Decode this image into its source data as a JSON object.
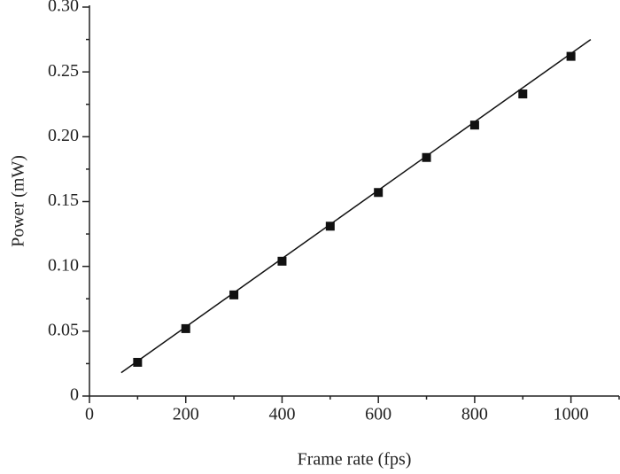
{
  "chart_data": {
    "type": "scatter",
    "x_label": "Frame rate (fps)",
    "y_label": "Power (mW)",
    "xlim": [
      0,
      1100
    ],
    "ylim": [
      0,
      0.3
    ],
    "xticks": [
      0,
      200,
      400,
      600,
      800,
      1000
    ],
    "yticks": [
      0,
      {
        "value": 0.05,
        "label": "0.05"
      },
      {
        "value": 0.1,
        "label": "0.10"
      },
      {
        "value": 0.15,
        "label": "0.15"
      },
      {
        "value": 0.2,
        "label": "0.20"
      },
      {
        "value": 0.25,
        "label": "0.25"
      },
      {
        "value": 0.3,
        "label": "0.30"
      }
    ],
    "xminorticks": [
      100,
      300,
      500,
      700,
      900,
      1100
    ],
    "yminorticks": [
      0.025,
      0.075,
      0.125,
      0.175,
      0.225,
      0.275
    ],
    "series": [
      {
        "color": "#111111",
        "marker": "square",
        "x": [
          100,
          200,
          300,
          400,
          500,
          600,
          700,
          800,
          900,
          1000
        ],
        "values": [
          0.026,
          0.052,
          0.078,
          0.104,
          0.131,
          0.157,
          0.184,
          0.209,
          0.233,
          0.262
        ]
      },
      {
        "color": "#111111",
        "marker": "line",
        "x": [
          66,
          1041
        ],
        "values": [
          0.018,
          0.275
        ]
      }
    ]
  }
}
